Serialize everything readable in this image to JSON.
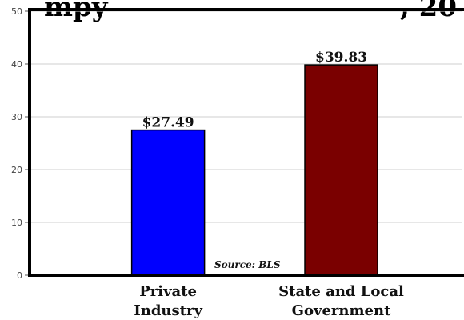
{
  "chart_data": {
    "type": "bar",
    "title": "",
    "title_visible_fragment": "mpy",
    "title_visible_fragment_right": ", 20",
    "categories": [
      "Private Industry",
      "State and Local Government"
    ],
    "category_lines": [
      [
        "Private",
        "Industry"
      ],
      [
        "State and Local",
        "Government"
      ]
    ],
    "values": [
      27.49,
      39.83
    ],
    "data_labels": [
      "$27.49",
      "$39.83"
    ],
    "bar_colors": [
      "#0000ff",
      "#7a0000"
    ],
    "ylim": [
      0,
      50
    ],
    "yticks": [
      0,
      10,
      20,
      30,
      40,
      50
    ],
    "ytick_labels": [
      "0",
      "10",
      "20",
      "30",
      "40",
      "50"
    ],
    "grid": true,
    "annotation": "Source: BLS",
    "xlabel": "",
    "ylabel": ""
  }
}
